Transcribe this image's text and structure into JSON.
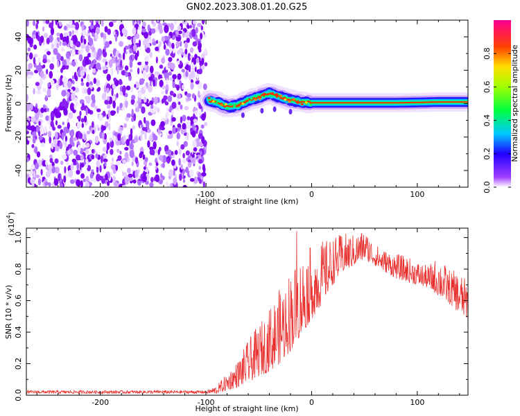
{
  "title": "GN02.2023.308.01.20.G25",
  "chart_data": [
    {
      "type": "heatmap",
      "xlabel": "Height of straight line (km)",
      "ylabel": "Frequency (Hz)",
      "xlim": [
        -270,
        148
      ],
      "ylim": [
        -50,
        50
      ],
      "xticks": [
        -200,
        -100,
        0,
        100
      ],
      "yticks": [
        -40,
        -20,
        0,
        20,
        40
      ],
      "noise_region_x": [
        -270,
        -100
      ],
      "signal_track": {
        "x": [
          -97,
          -90,
          -80,
          -70,
          -60,
          -50,
          -40,
          -30,
          -20,
          -10,
          0,
          20,
          40,
          60,
          80,
          100,
          120,
          148
        ],
        "frequency": [
          2,
          1,
          -2,
          -1,
          2,
          4,
          6,
          4,
          2,
          1,
          0.5,
          0.5,
          0.5,
          0.5,
          0.5,
          0.7,
          1,
          1
        ]
      },
      "colorbar": {
        "label": "Normalized spectral amplitude",
        "ticks": [
          0.0,
          0.2,
          0.4,
          0.6,
          0.8
        ],
        "range": [
          0,
          1
        ],
        "colors": [
          "#ffffff",
          "#8000ff",
          "#0000ff",
          "#00ffff",
          "#00ff00",
          "#ffff00",
          "#ff8000",
          "#ff0000",
          "#ff00a0"
        ]
      }
    },
    {
      "type": "line",
      "xlabel": "Height of straight line (km)",
      "ylabel": "SNR (10 * v/v)",
      "multiplier": "(x10",
      "multiplier_exp": "4",
      "multiplier_close": ")",
      "xlim": [
        -270,
        148
      ],
      "ylim": [
        0,
        1.06
      ],
      "xticks": [
        -200,
        -100,
        0,
        100
      ],
      "yticks": [
        0.0,
        0.2,
        0.4,
        0.6,
        0.8,
        1.0
      ],
      "line_color": "#e8302e",
      "envelope": {
        "x": [
          -270,
          -100,
          -90,
          -80,
          -70,
          -60,
          -50,
          -40,
          -30,
          -20,
          -10,
          0,
          10,
          20,
          30,
          40,
          50,
          60,
          70,
          80,
          90,
          100,
          110,
          120,
          130,
          140,
          148
        ],
        "lo": [
          0.01,
          0.01,
          0.01,
          0.03,
          0.05,
          0.08,
          0.12,
          0.15,
          0.2,
          0.28,
          0.38,
          0.48,
          0.58,
          0.7,
          0.78,
          0.82,
          0.86,
          0.82,
          0.78,
          0.74,
          0.72,
          0.7,
          0.68,
          0.63,
          0.58,
          0.52,
          0.48
        ],
        "hi": [
          0.03,
          0.03,
          0.06,
          0.14,
          0.22,
          0.35,
          0.45,
          0.55,
          0.68,
          0.8,
          0.88,
          0.95,
          0.98,
          1.0,
          1.03,
          1.02,
          1.05,
          0.96,
          0.92,
          0.9,
          0.88,
          0.85,
          0.82,
          0.88,
          0.8,
          0.78,
          0.72
        ]
      }
    }
  ]
}
